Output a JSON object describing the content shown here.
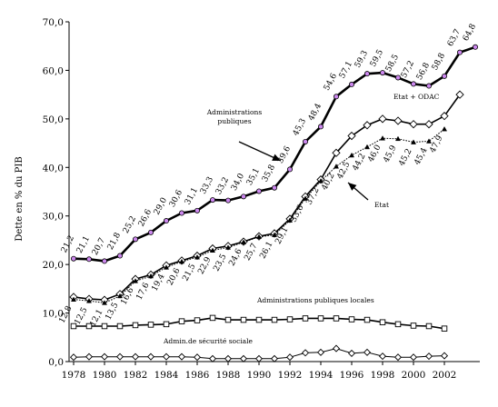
{
  "chart_data": {
    "type": "line",
    "ylabel": "Dette en % du PIB",
    "xlabel": "",
    "ylim": [
      0,
      70
    ],
    "xlim": [
      1978,
      2004.3
    ],
    "yticks": [
      {
        "value": 0,
        "label": "0,0"
      },
      {
        "value": 10,
        "label": "10,0"
      },
      {
        "value": 20,
        "label": "20,0"
      },
      {
        "value": 30,
        "label": "30,0"
      },
      {
        "value": 40,
        "label": "40,0"
      },
      {
        "value": 50,
        "label": "50,0"
      },
      {
        "value": 60,
        "label": "60,0"
      },
      {
        "value": 70,
        "label": "70,0"
      }
    ],
    "xticks": [
      1978,
      1980,
      1982,
      1984,
      1986,
      1988,
      1990,
      1992,
      1994,
      1996,
      1998,
      2000,
      2002
    ],
    "grid": false,
    "legend": "none",
    "series": [
      {
        "name": "Administrations publiques",
        "marker": "circle-filled",
        "color": "#000000",
        "marker_color": "#cc88ee",
        "points": [
          {
            "x": 1978,
            "y": 21.2,
            "label": "21,2"
          },
          {
            "x": 1979,
            "y": 21.1,
            "label": "21,1"
          },
          {
            "x": 1980,
            "y": 20.7,
            "label": "20,7"
          },
          {
            "x": 1981,
            "y": 21.8,
            "label": "21,8"
          },
          {
            "x": 1982,
            "y": 25.2,
            "label": "25,2"
          },
          {
            "x": 1983,
            "y": 26.6,
            "label": "26,6"
          },
          {
            "x": 1984,
            "y": 29.0,
            "label": "29,0"
          },
          {
            "x": 1985,
            "y": 30.6,
            "label": "30,6"
          },
          {
            "x": 1986,
            "y": 31.1,
            "label": "31,1"
          },
          {
            "x": 1987,
            "y": 33.3,
            "label": "33,3"
          },
          {
            "x": 1988,
            "y": 33.2,
            "label": "33,2"
          },
          {
            "x": 1989,
            "y": 34.0,
            "label": "34,0"
          },
          {
            "x": 1990,
            "y": 35.1,
            "label": "35,1"
          },
          {
            "x": 1991,
            "y": 35.8,
            "label": "35,8"
          },
          {
            "x": 1992,
            "y": 39.6,
            "label": "39,6"
          },
          {
            "x": 1993,
            "y": 45.3,
            "label": "45,3"
          },
          {
            "x": 1994,
            "y": 48.4,
            "label": "48,4"
          },
          {
            "x": 1995,
            "y": 54.6,
            "label": "54,6"
          },
          {
            "x": 1996,
            "y": 57.1,
            "label": "57,1"
          },
          {
            "x": 1997,
            "y": 59.3,
            "label": "59,3"
          },
          {
            "x": 1998,
            "y": 59.5,
            "label": "59,5"
          },
          {
            "x": 1999,
            "y": 58.5,
            "label": "58,5"
          },
          {
            "x": 2000,
            "y": 57.2,
            "label": "57,2"
          },
          {
            "x": 2001,
            "y": 56.8,
            "label": "56,8"
          },
          {
            "x": 2002,
            "y": 58.8,
            "label": "58,8"
          },
          {
            "x": 2003,
            "y": 63.7,
            "label": "63,7"
          },
          {
            "x": 2004,
            "y": 64.8,
            "label": "64,8"
          }
        ]
      },
      {
        "name": "Etat + ODAC",
        "marker": "diamond-open",
        "color": "#000000",
        "marker_color": "#ffffff",
        "points": [
          {
            "x": 1978,
            "y": 13.3,
            "label": ""
          },
          {
            "x": 1979,
            "y": 12.9,
            "label": ""
          },
          {
            "x": 1980,
            "y": 12.7,
            "label": ""
          },
          {
            "x": 1981,
            "y": 13.9,
            "label": ""
          },
          {
            "x": 1982,
            "y": 17.0,
            "label": ""
          },
          {
            "x": 1983,
            "y": 17.9,
            "label": ""
          },
          {
            "x": 1984,
            "y": 19.8,
            "label": ""
          },
          {
            "x": 1985,
            "y": 20.8,
            "label": ""
          },
          {
            "x": 1986,
            "y": 21.8,
            "label": ""
          },
          {
            "x": 1987,
            "y": 23.3,
            "label": ""
          },
          {
            "x": 1988,
            "y": 23.8,
            "label": ""
          },
          {
            "x": 1989,
            "y": 24.7,
            "label": ""
          },
          {
            "x": 1990,
            "y": 25.8,
            "label": ""
          },
          {
            "x": 1991,
            "y": 26.4,
            "label": ""
          },
          {
            "x": 1992,
            "y": 29.4,
            "label": ""
          },
          {
            "x": 1993,
            "y": 34.0,
            "label": ""
          },
          {
            "x": 1994,
            "y": 37.5,
            "label": ""
          },
          {
            "x": 1995,
            "y": 43.0,
            "label": ""
          },
          {
            "x": 1996,
            "y": 46.5,
            "label": ""
          },
          {
            "x": 1997,
            "y": 48.7,
            "label": ""
          },
          {
            "x": 1998,
            "y": 50.0,
            "label": ""
          },
          {
            "x": 1999,
            "y": 49.6,
            "label": ""
          },
          {
            "x": 2000,
            "y": 48.9,
            "label": ""
          },
          {
            "x": 2001,
            "y": 48.9,
            "label": ""
          },
          {
            "x": 2002,
            "y": 50.6,
            "label": ""
          },
          {
            "x": 2003,
            "y": 55.0,
            "label": ""
          }
        ]
      },
      {
        "name": "Etat",
        "marker": "triangle-filled",
        "color": "#000000",
        "marker_color": "#000000",
        "points": [
          {
            "x": 1978,
            "y": 12.8,
            "label": "12,8"
          },
          {
            "x": 1979,
            "y": 12.5,
            "label": "12,5"
          },
          {
            "x": 1980,
            "y": 12.1,
            "label": "12,1"
          },
          {
            "x": 1981,
            "y": 13.5,
            "label": "13,5"
          },
          {
            "x": 1982,
            "y": 16.6,
            "label": "16,6"
          },
          {
            "x": 1983,
            "y": 17.6,
            "label": "17,6"
          },
          {
            "x": 1984,
            "y": 19.4,
            "label": "19,4"
          },
          {
            "x": 1985,
            "y": 20.6,
            "label": "20,6"
          },
          {
            "x": 1986,
            "y": 21.5,
            "label": "21,5"
          },
          {
            "x": 1987,
            "y": 22.9,
            "label": "22,9"
          },
          {
            "x": 1988,
            "y": 23.5,
            "label": "23,5"
          },
          {
            "x": 1989,
            "y": 24.6,
            "label": "24,6"
          },
          {
            "x": 1990,
            "y": 25.7,
            "label": "25,7"
          },
          {
            "x": 1991,
            "y": 26.1,
            "label": "26,1"
          },
          {
            "x": 1992,
            "y": 29.1,
            "label": "29,1"
          },
          {
            "x": 1993,
            "y": 33.6,
            "label": "33,6"
          },
          {
            "x": 1994,
            "y": 37.2,
            "label": "37,2"
          },
          {
            "x": 1995,
            "y": 40.2,
            "label": "40,2"
          },
          {
            "x": 1996,
            "y": 42.5,
            "label": "42,5"
          },
          {
            "x": 1997,
            "y": 44.2,
            "label": "44,2"
          },
          {
            "x": 1998,
            "y": 46.0,
            "label": "46,0"
          },
          {
            "x": 1999,
            "y": 45.9,
            "label": "45,9"
          },
          {
            "x": 2000,
            "y": 45.2,
            "label": "45,2"
          },
          {
            "x": 2001,
            "y": 45.4,
            "label": "45,4"
          },
          {
            "x": 2002,
            "y": 47.9,
            "label": "47,9"
          }
        ]
      },
      {
        "name": "Administrations publiques locales",
        "marker": "square-open",
        "color": "#000000",
        "marker_color": "#ffffff",
        "points": [
          {
            "x": 1978,
            "y": 7.3,
            "label": ""
          },
          {
            "x": 1979,
            "y": 7.3,
            "label": ""
          },
          {
            "x": 1980,
            "y": 7.3,
            "label": ""
          },
          {
            "x": 1981,
            "y": 7.3,
            "label": ""
          },
          {
            "x": 1982,
            "y": 7.5,
            "label": ""
          },
          {
            "x": 1983,
            "y": 7.6,
            "label": ""
          },
          {
            "x": 1984,
            "y": 7.7,
            "label": ""
          },
          {
            "x": 1985,
            "y": 8.3,
            "label": ""
          },
          {
            "x": 1986,
            "y": 8.5,
            "label": ""
          },
          {
            "x": 1987,
            "y": 9.0,
            "label": ""
          },
          {
            "x": 1988,
            "y": 8.6,
            "label": ""
          },
          {
            "x": 1989,
            "y": 8.6,
            "label": ""
          },
          {
            "x": 1990,
            "y": 8.6,
            "label": ""
          },
          {
            "x": 1991,
            "y": 8.6,
            "label": ""
          },
          {
            "x": 1992,
            "y": 8.7,
            "label": ""
          },
          {
            "x": 1993,
            "y": 8.9,
            "label": ""
          },
          {
            "x": 1994,
            "y": 8.9,
            "label": ""
          },
          {
            "x": 1995,
            "y": 8.9,
            "label": ""
          },
          {
            "x": 1996,
            "y": 8.7,
            "label": ""
          },
          {
            "x": 1997,
            "y": 8.6,
            "label": ""
          },
          {
            "x": 1998,
            "y": 8.1,
            "label": ""
          },
          {
            "x": 1999,
            "y": 7.7,
            "label": ""
          },
          {
            "x": 2000,
            "y": 7.4,
            "label": ""
          },
          {
            "x": 2001,
            "y": 7.3,
            "label": ""
          },
          {
            "x": 2002,
            "y": 6.8,
            "label": ""
          }
        ]
      },
      {
        "name": "Admin.de sécurité sociale",
        "marker": "diamond-open",
        "color": "#000000",
        "marker_color": "#ffffff",
        "points": [
          {
            "x": 1978,
            "y": 0.9,
            "label": ""
          },
          {
            "x": 1979,
            "y": 1.0,
            "label": ""
          },
          {
            "x": 1980,
            "y": 1.0,
            "label": ""
          },
          {
            "x": 1981,
            "y": 1.0,
            "label": ""
          },
          {
            "x": 1982,
            "y": 1.0,
            "label": ""
          },
          {
            "x": 1983,
            "y": 1.0,
            "label": ""
          },
          {
            "x": 1984,
            "y": 1.0,
            "label": ""
          },
          {
            "x": 1985,
            "y": 1.0,
            "label": ""
          },
          {
            "x": 1986,
            "y": 0.9,
            "label": ""
          },
          {
            "x": 1987,
            "y": 0.6,
            "label": ""
          },
          {
            "x": 1988,
            "y": 0.6,
            "label": ""
          },
          {
            "x": 1989,
            "y": 0.6,
            "label": ""
          },
          {
            "x": 1990,
            "y": 0.6,
            "label": ""
          },
          {
            "x": 1991,
            "y": 0.6,
            "label": ""
          },
          {
            "x": 1992,
            "y": 0.9,
            "label": ""
          },
          {
            "x": 1993,
            "y": 1.8,
            "label": ""
          },
          {
            "x": 1994,
            "y": 1.9,
            "label": ""
          },
          {
            "x": 1995,
            "y": 2.7,
            "label": ""
          },
          {
            "x": 1996,
            "y": 1.7,
            "label": ""
          },
          {
            "x": 1997,
            "y": 1.9,
            "label": ""
          },
          {
            "x": 1998,
            "y": 1.1,
            "label": ""
          },
          {
            "x": 1999,
            "y": 0.9,
            "label": ""
          },
          {
            "x": 2000,
            "y": 0.9,
            "label": ""
          },
          {
            "x": 2001,
            "y": 1.1,
            "label": ""
          },
          {
            "x": 2002,
            "y": 1.2,
            "label": ""
          }
        ]
      }
    ],
    "annotations": [
      {
        "text": "Administrations",
        "key": "admin_pub_1"
      },
      {
        "text": "publiques",
        "key": "admin_pub_2"
      },
      {
        "text": "Etat + ODAC",
        "key": "etat_odac"
      },
      {
        "text": "Etat",
        "key": "etat"
      },
      {
        "text": "Administrations publiques locales",
        "key": "apul"
      },
      {
        "text": "Admin.de sécurité sociale",
        "key": "asso"
      }
    ]
  }
}
